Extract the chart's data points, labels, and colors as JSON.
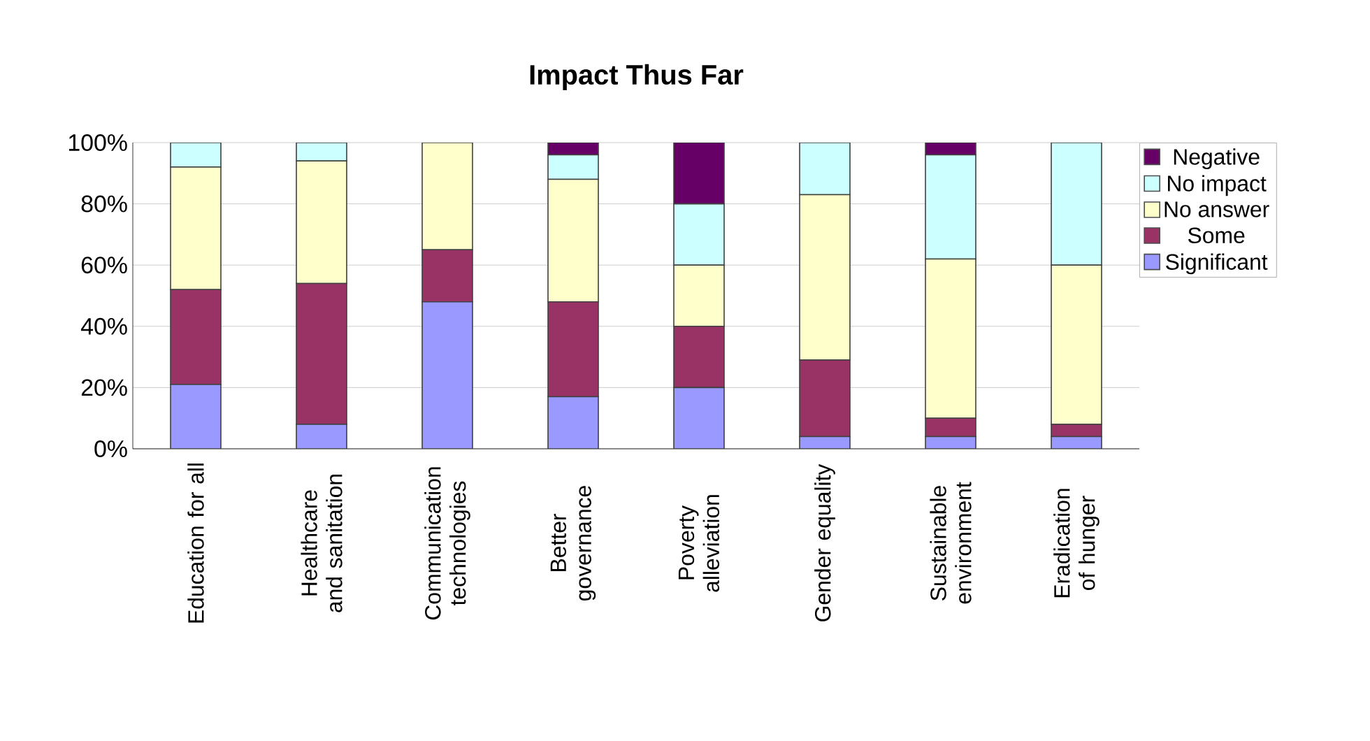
{
  "chart_data": {
    "type": "bar",
    "title": "Impact Thus Far",
    "stacked": true,
    "grid": "y",
    "legend": "right",
    "categories": [
      "Education for all",
      "Healthcare and sanitation",
      "Communication technologies",
      "Better governance",
      "Poverty alleviation",
      "Gender equality",
      "Sustainable environment",
      "Eradication of hunger"
    ],
    "ylim": [
      0,
      100
    ],
    "yticks": [
      {
        "value": 0,
        "label": "0%"
      },
      {
        "value": 20,
        "label": "20%"
      },
      {
        "value": 40,
        "label": "40%"
      },
      {
        "value": 60,
        "label": "60%"
      },
      {
        "value": 80,
        "label": "80%"
      },
      {
        "value": 100,
        "label": "100%"
      }
    ],
    "series": [
      {
        "name": "Significant",
        "color": "#9999ff",
        "values": [
          21,
          8,
          48,
          17,
          20,
          4,
          4,
          4
        ]
      },
      {
        "name": "Some",
        "color": "#993366",
        "values": [
          31,
          46,
          17,
          31,
          20,
          25,
          6,
          4
        ]
      },
      {
        "name": "No answer",
        "color": "#ffffcc",
        "values": [
          40,
          40,
          35,
          40,
          20,
          54,
          52,
          52
        ]
      },
      {
        "name": "No impact",
        "color": "#ccffff",
        "values": [
          8,
          6,
          0,
          8,
          20,
          17,
          34,
          40
        ]
      },
      {
        "name": "Negative",
        "color": "#660066",
        "values": [
          0,
          0,
          0,
          4,
          20,
          0,
          4,
          0
        ]
      }
    ]
  }
}
